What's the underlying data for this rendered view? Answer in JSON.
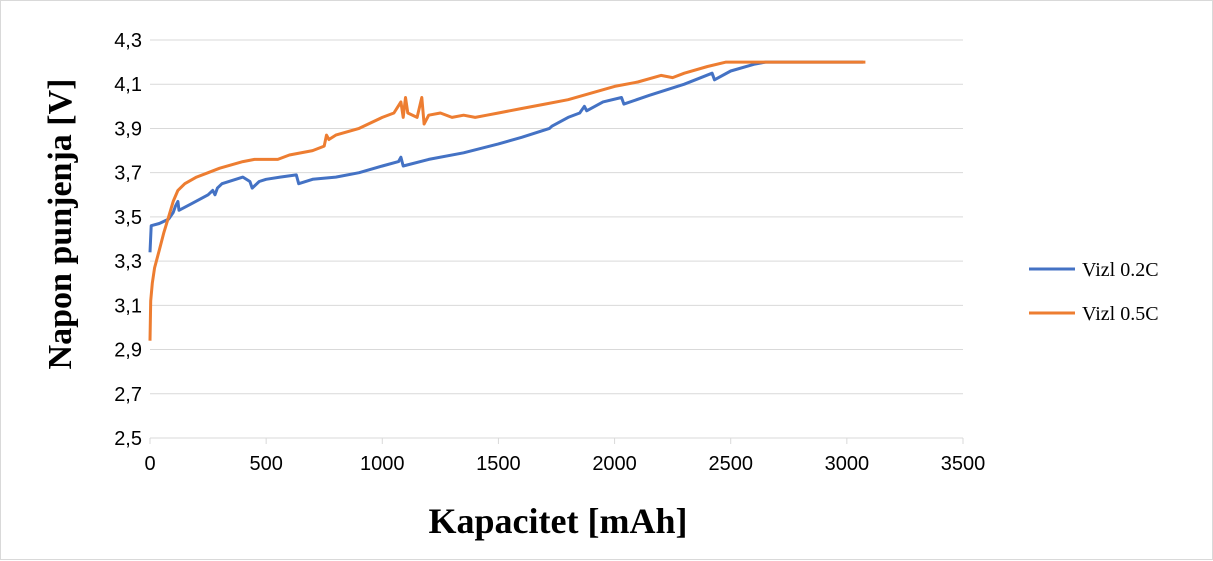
{
  "chart_data": {
    "type": "line",
    "title": "",
    "xlabel": "Kapacitet [mAh]",
    "ylabel": "Napon punjenja [V]",
    "xlim": [
      0,
      3500
    ],
    "ylim": [
      2.5,
      4.3
    ],
    "x_ticks": [
      0,
      500,
      1000,
      1500,
      2000,
      2500,
      3000,
      3500
    ],
    "y_ticks": [
      2.5,
      2.7,
      2.9,
      3.1,
      3.3,
      3.5,
      3.7,
      3.9,
      4.1,
      4.3
    ],
    "x_tick_labels": [
      "0",
      "500",
      "1000",
      "1500",
      "2000",
      "2500",
      "3000",
      "3500"
    ],
    "y_tick_labels": [
      "2,5",
      "2,7",
      "2,9",
      "3,1",
      "3,3",
      "3,5",
      "3,7",
      "3,9",
      "4,1",
      "4,3"
    ],
    "grid": "horizontal",
    "legend": "right",
    "series": [
      {
        "name": "Vizl 0.2C",
        "color": "#4472C4",
        "points": [
          [
            0,
            3.34
          ],
          [
            5,
            3.46
          ],
          [
            40,
            3.47
          ],
          [
            80,
            3.49
          ],
          [
            100,
            3.52
          ],
          [
            110,
            3.55
          ],
          [
            120,
            3.57
          ],
          [
            125,
            3.53
          ],
          [
            180,
            3.56
          ],
          [
            250,
            3.6
          ],
          [
            270,
            3.62
          ],
          [
            280,
            3.6
          ],
          [
            290,
            3.63
          ],
          [
            310,
            3.65
          ],
          [
            400,
            3.68
          ],
          [
            430,
            3.66
          ],
          [
            440,
            3.63
          ],
          [
            470,
            3.66
          ],
          [
            500,
            3.67
          ],
          [
            560,
            3.68
          ],
          [
            630,
            3.69
          ],
          [
            640,
            3.65
          ],
          [
            700,
            3.67
          ],
          [
            800,
            3.68
          ],
          [
            900,
            3.7
          ],
          [
            1000,
            3.73
          ],
          [
            1070,
            3.75
          ],
          [
            1080,
            3.77
          ],
          [
            1090,
            3.73
          ],
          [
            1200,
            3.76
          ],
          [
            1350,
            3.79
          ],
          [
            1500,
            3.83
          ],
          [
            1600,
            3.86
          ],
          [
            1720,
            3.9
          ],
          [
            1730,
            3.91
          ],
          [
            1800,
            3.95
          ],
          [
            1850,
            3.97
          ],
          [
            1870,
            4.0
          ],
          [
            1880,
            3.98
          ],
          [
            1950,
            4.02
          ],
          [
            2030,
            4.04
          ],
          [
            2040,
            4.01
          ],
          [
            2150,
            4.05
          ],
          [
            2300,
            4.1
          ],
          [
            2420,
            4.15
          ],
          [
            2430,
            4.12
          ],
          [
            2500,
            4.16
          ],
          [
            2600,
            4.19
          ],
          [
            2650,
            4.2
          ],
          [
            2700,
            4.2
          ],
          [
            3070,
            4.2
          ]
        ]
      },
      {
        "name": "Vizl 0.5C",
        "color": "#ED7D31",
        "points": [
          [
            0,
            2.94
          ],
          [
            3,
            3.12
          ],
          [
            10,
            3.2
          ],
          [
            20,
            3.27
          ],
          [
            40,
            3.35
          ],
          [
            60,
            3.43
          ],
          [
            80,
            3.5
          ],
          [
            100,
            3.57
          ],
          [
            120,
            3.62
          ],
          [
            150,
            3.65
          ],
          [
            200,
            3.68
          ],
          [
            250,
            3.7
          ],
          [
            300,
            3.72
          ],
          [
            400,
            3.75
          ],
          [
            450,
            3.76
          ],
          [
            550,
            3.76
          ],
          [
            600,
            3.78
          ],
          [
            700,
            3.8
          ],
          [
            750,
            3.82
          ],
          [
            760,
            3.87
          ],
          [
            770,
            3.85
          ],
          [
            800,
            3.87
          ],
          [
            900,
            3.9
          ],
          [
            1000,
            3.95
          ],
          [
            1050,
            3.97
          ],
          [
            1080,
            4.02
          ],
          [
            1090,
            3.95
          ],
          [
            1100,
            4.04
          ],
          [
            1110,
            3.97
          ],
          [
            1150,
            3.95
          ],
          [
            1170,
            4.04
          ],
          [
            1180,
            3.92
          ],
          [
            1200,
            3.96
          ],
          [
            1250,
            3.97
          ],
          [
            1300,
            3.95
          ],
          [
            1350,
            3.96
          ],
          [
            1400,
            3.95
          ],
          [
            1450,
            3.96
          ],
          [
            1500,
            3.97
          ],
          [
            1600,
            3.99
          ],
          [
            1700,
            4.01
          ],
          [
            1800,
            4.03
          ],
          [
            1900,
            4.06
          ],
          [
            2000,
            4.09
          ],
          [
            2100,
            4.11
          ],
          [
            2200,
            4.14
          ],
          [
            2250,
            4.13
          ],
          [
            2300,
            4.15
          ],
          [
            2400,
            4.18
          ],
          [
            2480,
            4.2
          ],
          [
            2600,
            4.2
          ],
          [
            3080,
            4.2
          ]
        ]
      }
    ]
  }
}
